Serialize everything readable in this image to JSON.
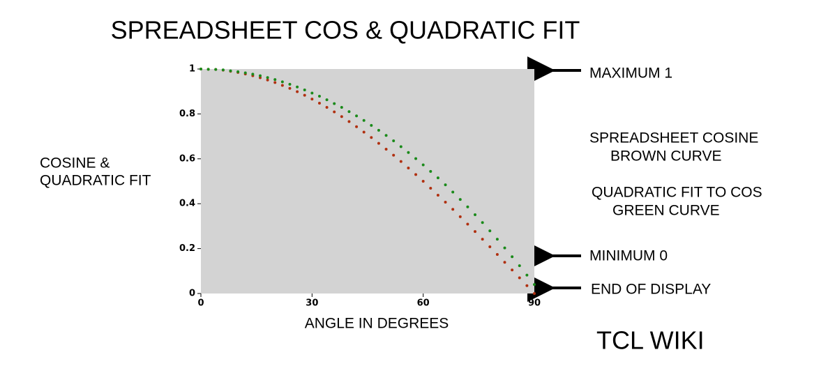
{
  "chart_data": {
    "type": "scatter",
    "title": "SPREADSHEET  COS  &  QUADRATIC  FIT",
    "xlabel": "ANGLE  IN  DEGREES",
    "ylabel": [
      "COSINE  &",
      "QUADRATIC FIT"
    ],
    "annotations": [
      "MAXIMUM  1",
      "SPREADSHEET  COSINE",
      "BROWN  CURVE",
      "QUADRATIC   FIT TO COS",
      "GREEN  CURVE",
      "MINIMUM  0",
      "END  OF  DISPLAY",
      "TCL  WIKI"
    ],
    "x": [
      0,
      2,
      4,
      6,
      8,
      10,
      12,
      14,
      16,
      18,
      20,
      22,
      24,
      26,
      28,
      30,
      32,
      34,
      36,
      38,
      40,
      42,
      44,
      46,
      48,
      50,
      52,
      54,
      56,
      58,
      60,
      62,
      64,
      66,
      68,
      70,
      72,
      74,
      76,
      78,
      80,
      82,
      84,
      86,
      88,
      90
    ],
    "series": [
      {
        "color": "#b03010",
        "values": [
          1,
          0.999,
          0.998,
          0.995,
          0.99,
          0.985,
          0.978,
          0.97,
          0.961,
          0.951,
          0.94,
          0.927,
          0.914,
          0.899,
          0.883,
          0.866,
          0.848,
          0.829,
          0.809,
          0.788,
          0.766,
          0.743,
          0.719,
          0.695,
          0.669,
          0.643,
          0.616,
          0.588,
          0.559,
          0.53,
          0.5,
          0.469,
          0.438,
          0.407,
          0.375,
          0.342,
          0.309,
          0.276,
          0.242,
          0.208,
          0.174,
          0.139,
          0.105,
          0.07,
          0.035,
          0
        ]
      },
      {
        "color": "#1a8a1a",
        "values": [
          1,
          0.999,
          0.998,
          0.996,
          0.992,
          0.988,
          0.983,
          0.977,
          0.97,
          0.962,
          0.953,
          0.943,
          0.932,
          0.92,
          0.907,
          0.893,
          0.879,
          0.863,
          0.846,
          0.829,
          0.81,
          0.791,
          0.771,
          0.749,
          0.727,
          0.704,
          0.68,
          0.654,
          0.628,
          0.601,
          0.573,
          0.544,
          0.515,
          0.484,
          0.452,
          0.419,
          0.386,
          0.351,
          0.316,
          0.279,
          0.242,
          0.203,
          0.164,
          0.124,
          0.082,
          0.04
        ]
      }
    ],
    "xlim": [
      0,
      90
    ],
    "xticks": [
      0,
      30,
      60,
      90
    ],
    "ylim": [
      0,
      1
    ],
    "yticks": [
      0,
      0.2,
      0.4,
      0.6,
      0.8,
      1
    ],
    "background": "#d3d3d3"
  }
}
